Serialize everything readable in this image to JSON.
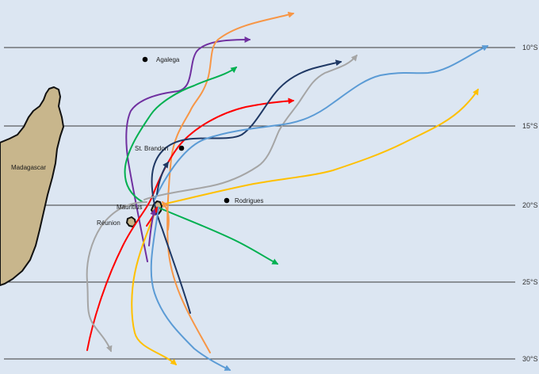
{
  "map": {
    "background": "#dce6f2",
    "latitude_lines": [
      {
        "label": "10°S"
      },
      {
        "label": "15°S"
      },
      {
        "label": "20°S"
      },
      {
        "label": "25°S"
      },
      {
        "label": "30°S"
      }
    ],
    "places": [
      {
        "name": "Agalega"
      },
      {
        "name": "St. Brandon"
      },
      {
        "name": "Madagascar"
      },
      {
        "name": "Mauritius"
      },
      {
        "name": "Réunion"
      },
      {
        "name": "Rodrigues"
      }
    ],
    "colors": {
      "land": "#c8b68c",
      "coast": "#111111",
      "grid": "#3a3a3a"
    },
    "tracks": [
      {
        "color": "#7030a0"
      },
      {
        "color": "#f79646"
      },
      {
        "color": "#00b050"
      },
      {
        "color": "#ff0000"
      },
      {
        "color": "#1f3864"
      },
      {
        "color": "#a5a5a5"
      },
      {
        "color": "#5b9bd5"
      },
      {
        "color": "#ffc000"
      },
      {
        "color": "#00b050"
      },
      {
        "color": "#a5a5a5"
      },
      {
        "color": "#ffc000"
      },
      {
        "color": "#ff0000"
      },
      {
        "color": "#7030a0"
      },
      {
        "color": "#f79646"
      },
      {
        "color": "#1f3864"
      },
      {
        "color": "#5b9bd5"
      }
    ]
  }
}
